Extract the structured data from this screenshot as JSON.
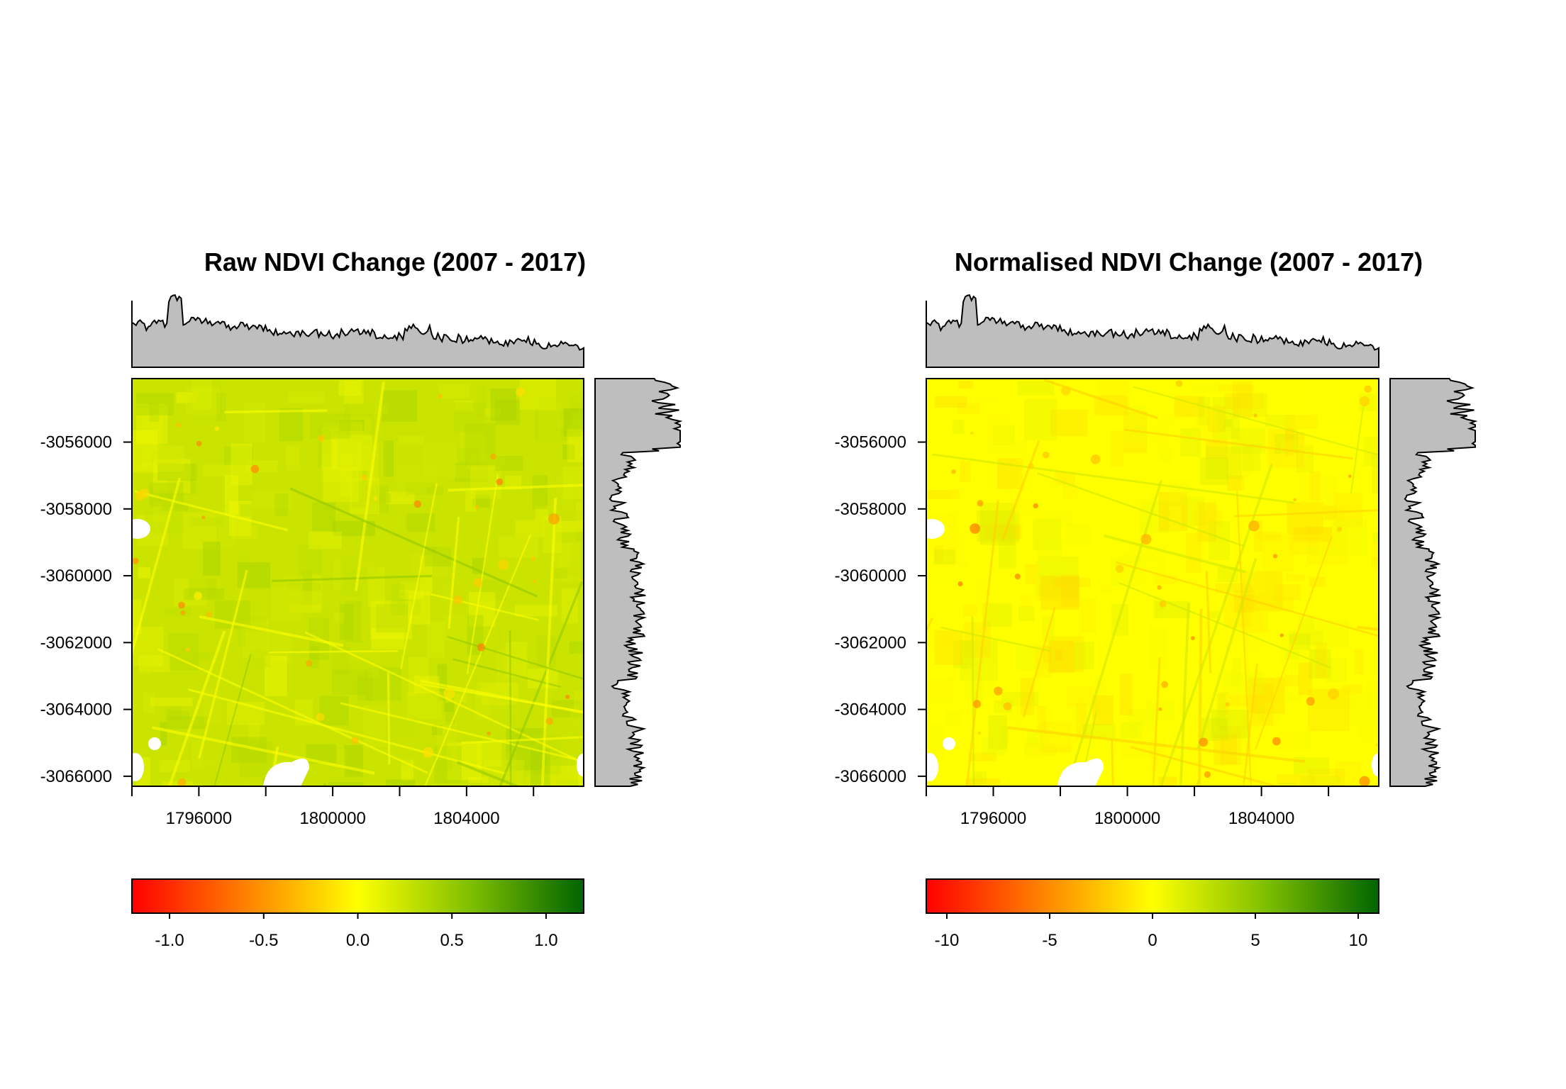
{
  "colors": {
    "scale": [
      "#ff0000",
      "#ff8000",
      "#ffff00",
      "#7fbf00",
      "#006400"
    ],
    "histogram_fill": "#bebebe",
    "axis": "#000000",
    "nodata": "#ffffff"
  },
  "chart_data": [
    {
      "type": "heatmap",
      "title": "Raw NDVI Change (2007 - 2017)",
      "x_ticks": [
        1796000,
        1800000,
        1804000
      ],
      "x_tick_labels": [
        "1796000",
        "1800000",
        "1804000"
      ],
      "xlim": [
        1794000,
        1807500
      ],
      "y_ticks": [
        -3056000,
        -3058000,
        -3060000,
        -3062000,
        -3064000,
        -3066000
      ],
      "y_tick_labels": [
        "-3056000",
        "-3058000",
        "-3060000",
        "-3062000",
        "-3064000",
        "-3066000"
      ],
      "ylim": [
        -3066300,
        -3054100
      ],
      "colorbar": {
        "range": [
          -1.2,
          1.2
        ],
        "ticks": [
          -1.0,
          -0.5,
          0.0,
          0.5,
          1.0
        ],
        "tick_labels": [
          "-1.0",
          "-0.5",
          "0.0",
          "0.5",
          "1.0"
        ]
      },
      "raster_base_value": 0.25,
      "raster_value_range": [
        -0.6,
        0.8
      ],
      "marginal_histograms": {
        "top": true,
        "right": true,
        "fill": "#bebebe"
      }
    },
    {
      "type": "heatmap",
      "title": "Normalised NDVI Change (2007 - 2017)",
      "x_ticks": [
        1796000,
        1800000,
        1804000
      ],
      "x_tick_labels": [
        "1796000",
        "1800000",
        "1804000"
      ],
      "xlim": [
        1794000,
        1807500
      ],
      "y_ticks": [
        -3056000,
        -3058000,
        -3060000,
        -3062000,
        -3064000,
        -3066000
      ],
      "y_tick_labels": [
        "-3056000",
        "-3058000",
        "-3060000",
        "-3062000",
        "-3064000",
        "-3066000"
      ],
      "ylim": [
        -3066300,
        -3054100
      ],
      "colorbar": {
        "range": [
          -11,
          11
        ],
        "ticks": [
          -10,
          -5,
          0,
          5,
          10
        ],
        "tick_labels": [
          "-10",
          "-5",
          "0",
          "5",
          "10"
        ]
      },
      "raster_base_value": 0.0,
      "raster_value_range": [
        -6,
        5
      ],
      "marginal_histograms": {
        "top": true,
        "right": true,
        "fill": "#bebebe"
      }
    }
  ]
}
